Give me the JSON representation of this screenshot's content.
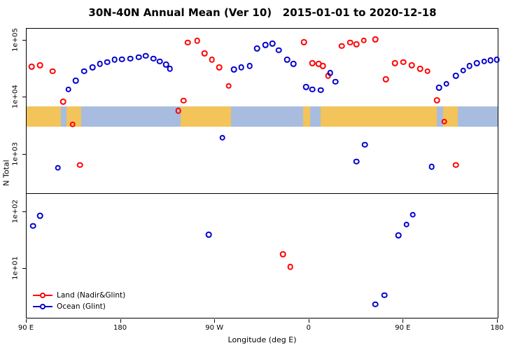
{
  "chart_data": {
    "type": "scatter",
    "title": "30N-40N Annual Mean (Ver 10)   2015-01-01 to 2020-12-18",
    "xlabel": "Longitude (deg E)",
    "ylabel": "N Total",
    "axes": {
      "x_min": 90,
      "x_max": 540,
      "y_scale": "log10",
      "log_y_min": 0.146,
      "log_y_max": 5.207,
      "x_ticks": [
        {
          "lon": 90,
          "label": "90 E"
        },
        {
          "lon": 180,
          "label": "180"
        },
        {
          "lon": 270,
          "label": "90 W"
        },
        {
          "lon": 360,
          "label": "0"
        },
        {
          "lon": 450,
          "label": "90 E"
        },
        {
          "lon": 540,
          "label": "180"
        }
      ],
      "y_ticks": [
        {
          "value": 10,
          "label": "1e+01"
        },
        {
          "value": 100,
          "label": "1e+02"
        },
        {
          "value": 1000,
          "label": "1e+03"
        },
        {
          "value": 10000,
          "label": "1e+04"
        },
        {
          "value": 100000,
          "label": "1e+05"
        }
      ],
      "grid": false
    },
    "reference_line_value": 213,
    "map_band": {
      "description": "30N-40N latitude strip of Earth drawn across the plot",
      "top_value": 7000,
      "bottom_value": 3100,
      "land_color": "#F2C45A",
      "ocean_color": "#A7BCDF",
      "segments": [
        {
          "type": "land",
          "from": 90,
          "to": 123
        },
        {
          "type": "ocean",
          "from": 123,
          "to": 128
        },
        {
          "type": "land",
          "from": 128,
          "to": 142
        },
        {
          "type": "ocean",
          "from": 142,
          "to": 237
        },
        {
          "type": "land",
          "from": 237,
          "to": 285
        },
        {
          "type": "ocean",
          "from": 285,
          "to": 354
        },
        {
          "type": "land",
          "from": 354,
          "to": 361
        },
        {
          "type": "ocean",
          "from": 361,
          "to": 371
        },
        {
          "type": "land",
          "from": 371,
          "to": 482
        },
        {
          "type": "ocean",
          "from": 482,
          "to": 488
        },
        {
          "type": "land",
          "from": 488,
          "to": 502
        },
        {
          "type": "ocean",
          "from": 502,
          "to": 540
        }
      ]
    },
    "series": [
      {
        "name": "Land (Nadir&Glint)",
        "color": "#FF0000",
        "marker": "open-circle",
        "points": [
          [
            95,
            35000
          ],
          [
            103,
            37000
          ],
          [
            115,
            29000
          ],
          [
            125,
            8500
          ],
          [
            134,
            3400
          ],
          [
            141,
            660
          ],
          [
            235,
            5900
          ],
          [
            240,
            8900
          ],
          [
            244,
            92000
          ],
          [
            253,
            99000
          ],
          [
            260,
            60000
          ],
          [
            267,
            46000
          ],
          [
            274,
            34000
          ],
          [
            283,
            16000
          ],
          [
            335,
            18
          ],
          [
            342,
            11
          ],
          [
            355,
            94000
          ],
          [
            363,
            40000
          ],
          [
            369,
            39000
          ],
          [
            373,
            36000
          ],
          [
            378,
            24000
          ],
          [
            391,
            80000
          ],
          [
            399,
            92000
          ],
          [
            405,
            86000
          ],
          [
            412,
            100000
          ],
          [
            423,
            105000
          ],
          [
            433,
            21000
          ],
          [
            442,
            40000
          ],
          [
            450,
            42000
          ],
          [
            458,
            37000
          ],
          [
            466,
            32000
          ],
          [
            473,
            29000
          ],
          [
            482,
            9000
          ],
          [
            489,
            3800
          ],
          [
            500,
            660
          ]
        ]
      },
      {
        "name": "Ocean (Glint)",
        "color": "#0000CC",
        "marker": "open-circle",
        "points": [
          [
            96,
            57
          ],
          [
            103,
            85
          ],
          [
            120,
            590
          ],
          [
            130,
            14000
          ],
          [
            137,
            20000
          ],
          [
            145,
            29000
          ],
          [
            153,
            34000
          ],
          [
            160,
            39000
          ],
          [
            167,
            42000
          ],
          [
            174,
            46000
          ],
          [
            181,
            47000
          ],
          [
            189,
            48000
          ],
          [
            197,
            51000
          ],
          [
            204,
            54000
          ],
          [
            211,
            48000
          ],
          [
            217,
            43000
          ],
          [
            223,
            38000
          ],
          [
            227,
            32000
          ],
          [
            264,
            40
          ],
          [
            277,
            2000
          ],
          [
            288,
            31000
          ],
          [
            295,
            34000
          ],
          [
            303,
            36000
          ],
          [
            310,
            73000
          ],
          [
            318,
            83000
          ],
          [
            325,
            88000
          ],
          [
            331,
            68000
          ],
          [
            339,
            46000
          ],
          [
            345,
            39000
          ],
          [
            357,
            15500
          ],
          [
            363,
            14000
          ],
          [
            371,
            13500
          ],
          [
            380,
            27000
          ],
          [
            385,
            19000
          ],
          [
            405,
            760
          ],
          [
            413,
            1500
          ],
          [
            423,
            2.4
          ],
          [
            432,
            3.5
          ],
          [
            445,
            39
          ],
          [
            453,
            60
          ],
          [
            459,
            89
          ],
          [
            477,
            620
          ],
          [
            484,
            15000
          ],
          [
            491,
            17500
          ],
          [
            500,
            24000
          ],
          [
            507,
            30000
          ],
          [
            513,
            36000
          ],
          [
            520,
            40000
          ],
          [
            527,
            43000
          ],
          [
            533,
            45000
          ],
          [
            539,
            46000
          ]
        ]
      }
    ],
    "legend": {
      "position": "bottom-left",
      "items": [
        {
          "label": "Land (Nadir&Glint)",
          "color": "#FF0000"
        },
        {
          "label": "Ocean (Glint)",
          "color": "#0000CC"
        }
      ]
    }
  }
}
